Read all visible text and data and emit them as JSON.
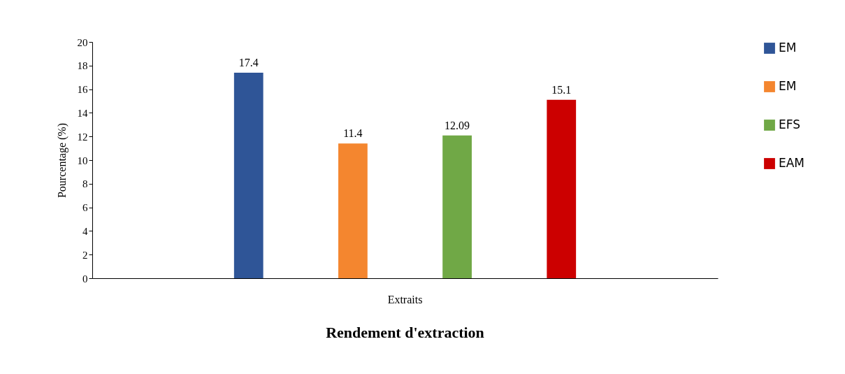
{
  "chart_data": {
    "type": "bar",
    "title": "Rendement d'extraction",
    "ylabel": "Pourcentage (%)",
    "categories": [
      "Extraits"
    ],
    "series": [
      {
        "name": "EM",
        "color": "#2f5597",
        "values": [
          17.4
        ]
      },
      {
        "name": "EM",
        "color": "#f4862f",
        "values": [
          11.4
        ]
      },
      {
        "name": "EFS",
        "color": "#70a846",
        "values": [
          12.09
        ]
      },
      {
        "name": "EAM",
        "color": "#cc0000",
        "values": [
          15.1
        ]
      }
    ],
    "ylim": [
      0,
      20
    ],
    "yticks": [
      0,
      2,
      4,
      6,
      8,
      10,
      12,
      14,
      16,
      18,
      20
    ],
    "data_labels": true,
    "legend": "right",
    "grid": false
  }
}
